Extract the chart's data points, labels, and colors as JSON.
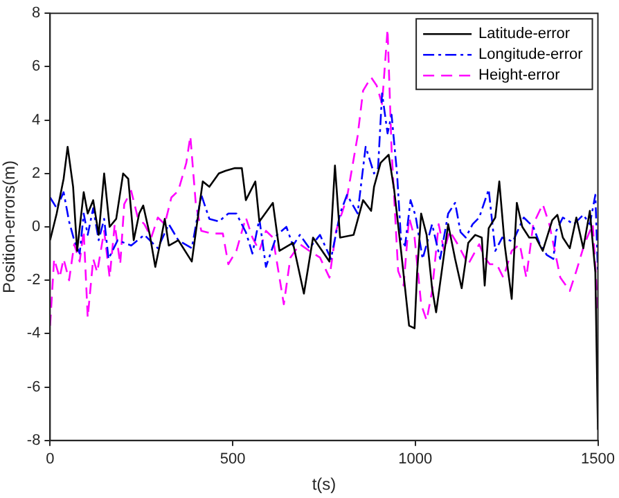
{
  "chart_data": {
    "type": "line",
    "xlabel": "t(s)",
    "ylabel": "Position-errors(m)",
    "xlim": [
      0,
      1500
    ],
    "xticks": [
      0,
      500,
      1000,
      1500
    ],
    "ylim": [
      -8,
      8
    ],
    "yticks": [
      -8,
      -6,
      -4,
      -2,
      0,
      2,
      4,
      6,
      8
    ],
    "grid": false,
    "legend": "top right",
    "marker": "none",
    "series": [
      {
        "name": "Latitude-error",
        "color": "#000000",
        "line_style": "solid",
        "x": [
          0,
          18,
          37,
          48,
          63,
          74,
          92,
          103,
          118,
          133,
          148,
          163,
          181,
          200,
          214,
          229,
          244,
          255,
          273,
          288,
          303,
          314,
          325,
          351,
          388,
          406,
          418,
          436,
          462,
          480,
          506,
          525,
          536,
          562,
          573,
          610,
          628,
          665,
          695,
          720,
          765,
          780,
          794,
          831,
          857,
          879,
          887,
          905,
          927,
          942,
          961,
          983,
          998,
          1005,
          1016,
          1031,
          1046,
          1057,
          1072,
          1090,
          1109,
          1127,
          1145,
          1164,
          1182,
          1190,
          1201,
          1219,
          1230,
          1245,
          1264,
          1278,
          1293,
          1312,
          1330,
          1349,
          1375,
          1389,
          1404,
          1423,
          1441,
          1460,
          1478,
          1493,
          1500
        ],
        "values": [
          -0.5,
          0.5,
          1.8,
          3.0,
          1.5,
          -0.9,
          1.3,
          0.5,
          1.0,
          -0.3,
          2.0,
          0,
          0.3,
          2.0,
          1.8,
          -0.5,
          0.5,
          0.8,
          -0.3,
          -1.5,
          -0.5,
          0.3,
          -0.7,
          -0.5,
          -1.3,
          0.5,
          1.7,
          1.5,
          2.0,
          2.1,
          2.2,
          2.2,
          1.0,
          1.7,
          0.2,
          0.9,
          -0.9,
          -0.6,
          -2.5,
          -0.4,
          -1.3,
          2.3,
          -0.4,
          -0.3,
          1.0,
          0.6,
          1.5,
          2.4,
          2.7,
          1.4,
          -0.9,
          -3.7,
          -3.8,
          -1.7,
          0.5,
          -0.3,
          -2.3,
          -3.2,
          -1.7,
          0.1,
          -1.2,
          -2.3,
          -0.6,
          -0.3,
          -0.4,
          -2.2,
          -0.05,
          0.35,
          1.7,
          -0.7,
          -2.7,
          0.9,
          0,
          -0.4,
          -0.4,
          -0.9,
          0.25,
          0.45,
          -0.4,
          -0.8,
          0.35,
          -0.8,
          0.6,
          -1.7,
          -7.6
        ]
      },
      {
        "name": "Longitude-error",
        "color": "#0000ff",
        "line_style": "dashdot",
        "x": [
          0,
          18,
          37,
          52,
          66,
          81,
          92,
          103,
          118,
          133,
          148,
          160,
          185,
          222,
          258,
          295,
          325,
          351,
          388,
          414,
          436,
          462,
          488,
          510,
          536,
          554,
          573,
          591,
          621,
          647,
          665,
          684,
          710,
          739,
          769,
          794,
          813,
          842,
          864,
          887,
          898,
          909,
          924,
          935,
          950,
          961,
          972,
          987,
          1001,
          1020,
          1046,
          1068,
          1090,
          1109,
          1124,
          1138,
          1157,
          1175,
          1201,
          1219,
          1238,
          1267,
          1297,
          1323,
          1341,
          1360,
          1378,
          1386,
          1404,
          1434,
          1460,
          1478,
          1493,
          1500
        ],
        "values": [
          1.1,
          0.7,
          1.3,
          0.2,
          -0.5,
          -1.0,
          0.5,
          -0.3,
          0.7,
          -0.5,
          0.3,
          -1.2,
          -0.5,
          -0.7,
          -0.3,
          -0.8,
          0.1,
          -0.5,
          -0.8,
          1.2,
          0.3,
          0.2,
          0.5,
          0.5,
          -0.2,
          -1.0,
          0.3,
          -1.5,
          -0.3,
          0,
          -0.7,
          -0.3,
          -0.8,
          -0.3,
          -1.2,
          0.5,
          1.2,
          0.5,
          3.0,
          2.0,
          2.2,
          5.0,
          3.5,
          4.2,
          2.0,
          -0.5,
          -0.7,
          1.0,
          0.4,
          -1.2,
          0.1,
          -1.2,
          0.5,
          0.9,
          -0.2,
          -0.4,
          0.1,
          0.35,
          1.4,
          -0.9,
          -0.4,
          -0.55,
          0.35,
          0,
          -0.65,
          -1.05,
          -1.2,
          -0.15,
          0.35,
          0.1,
          0.45,
          0.1,
          1.2,
          -1.7
        ]
      },
      {
        "name": "Height-error",
        "color": "#ff00ff",
        "line_style": "dashed",
        "x": [
          0,
          11,
          26,
          37,
          52,
          66,
          81,
          92,
          103,
          118,
          129,
          148,
          163,
          177,
          192,
          203,
          222,
          240,
          258,
          277,
          295,
          314,
          332,
          351,
          373,
          384,
          399,
          414,
          443,
          473,
          488,
          510,
          536,
          554,
          573,
          591,
          610,
          628,
          640,
          658,
          684,
          710,
          739,
          765,
          783,
          813,
          842,
          857,
          879,
          894,
          909,
          924,
          935,
          953,
          968,
          983,
          998,
          1016,
          1031,
          1046,
          1064,
          1079,
          1094,
          1116,
          1145,
          1175,
          1190,
          1204,
          1223,
          1241,
          1264,
          1286,
          1304,
          1323,
          1349,
          1367,
          1397,
          1423,
          1441,
          1463,
          1486,
          1500
        ],
        "values": [
          -3.7,
          -1.2,
          -1.9,
          -1.2,
          -2.0,
          -0.65,
          -1.3,
          -0.15,
          -3.4,
          -1.2,
          -1.7,
          -0.15,
          -1.9,
          0.1,
          -1.4,
          0.85,
          1.35,
          0.35,
          0.1,
          -0.4,
          0.35,
          0.1,
          1.1,
          1.35,
          2.4,
          3.4,
          0.85,
          -0.15,
          -0.25,
          -0.25,
          -1.4,
          -0.9,
          0.35,
          -0.4,
          -0.9,
          -0.15,
          -0.4,
          -1.9,
          -2.9,
          -1.15,
          -0.65,
          -0.9,
          -1.15,
          -1.9,
          -0.15,
          1.1,
          3.4,
          5.1,
          5.6,
          5.3,
          4.6,
          7.4,
          2.9,
          -1.65,
          -2.2,
          0.35,
          -0.4,
          -2.9,
          -3.5,
          -2.4,
          0.1,
          -0.9,
          -0.15,
          -0.65,
          -1.4,
          -0.65,
          -1.15,
          -1.4,
          -1.4,
          -1.9,
          -0.9,
          -0.65,
          -1.9,
          0.1,
          0.85,
          0.1,
          -1.9,
          -2.4,
          -1.65,
          -0.65,
          0.1,
          -3.1
        ]
      }
    ]
  }
}
